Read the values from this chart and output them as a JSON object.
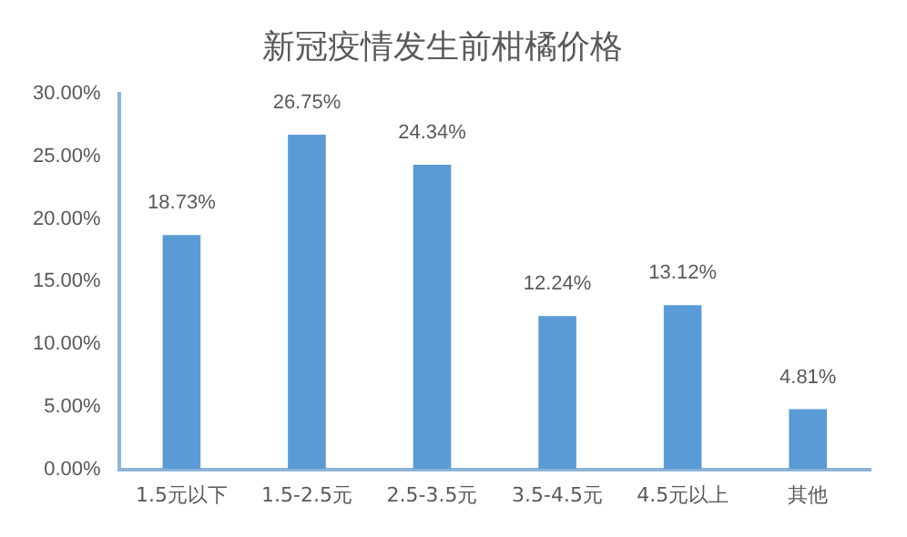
{
  "chart_data": {
    "type": "bar",
    "title": "新冠疫情发生前柑橘价格",
    "categories": [
      "1.5元以下",
      "1.5-2.5元",
      "2.5-3.5元",
      "3.5-4.5元",
      "4.5元以上",
      "其他"
    ],
    "values": [
      18.73,
      26.75,
      24.34,
      12.24,
      13.12,
      4.81
    ],
    "value_labels": [
      "18.73%",
      "26.75%",
      "24.34%",
      "12.24%",
      "13.12%",
      "4.81%"
    ],
    "color": "#5b9bd5",
    "ylim": [
      0,
      30
    ],
    "yticks": [
      {
        "value": 0,
        "label": "0.00%"
      },
      {
        "value": 5,
        "label": "5.00%"
      },
      {
        "value": 10,
        "label": "10.00%"
      },
      {
        "value": 15,
        "label": "15.00%"
      },
      {
        "value": 20,
        "label": "20.00%"
      },
      {
        "value": 25,
        "label": "25.00%"
      },
      {
        "value": 30,
        "label": "30.00%"
      }
    ],
    "grid": false,
    "legend": false
  }
}
